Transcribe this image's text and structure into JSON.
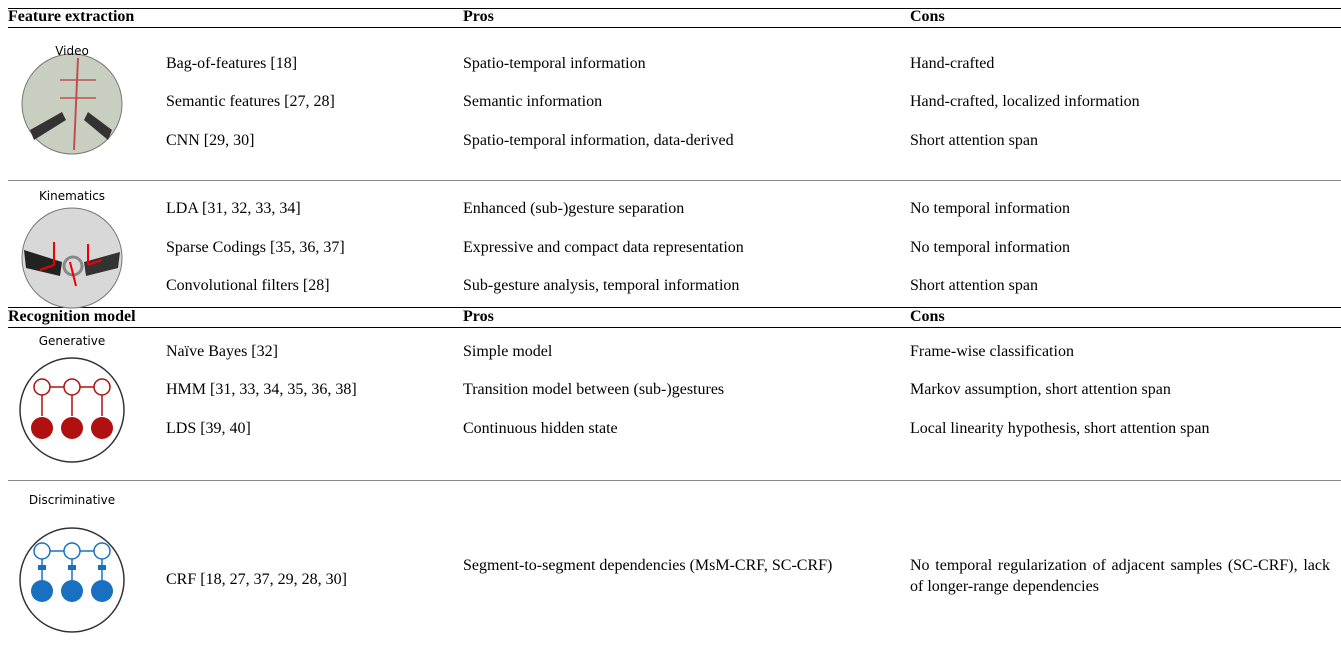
{
  "sections": [
    {
      "header": [
        "Feature extraction",
        "Pros",
        "Cons"
      ],
      "groups": [
        {
          "label": "Video",
          "rows": [
            [
              "Bag-of-features [18]",
              "Spatio-temporal information",
              "Hand-crafted"
            ],
            [
              "Semantic features [27, 28]",
              "Semantic information",
              "Hand-crafted, localized information"
            ],
            [
              "CNN [29, 30]",
              "Spatio-temporal information, data-derived",
              "Short attention span"
            ]
          ]
        },
        {
          "label": "Kinematics",
          "rows": [
            [
              "LDA [31, 32, 33, 34]",
              "Enhanced (sub-)gesture separation",
              "No temporal information"
            ],
            [
              "Sparse Codings [35, 36, 37]",
              "Expressive and compact data representation",
              "No temporal information"
            ],
            [
              "Convolutional filters [28]",
              "Sub-gesture analysis, temporal information",
              "Short attention span"
            ]
          ]
        }
      ]
    },
    {
      "header": [
        "Recognition model",
        "Pros",
        "Cons"
      ],
      "groups": [
        {
          "label": "Generative",
          "rows": [
            [
              "Naïve Bayes [32]",
              "Simple model",
              "Frame-wise classification"
            ],
            [
              "HMM [31, 33, 34, 35, 36, 38]",
              "Transition model between (sub-)gestures",
              "Markov assumption, short attention span"
            ],
            [
              "LDS [39, 40]",
              "Continuous hidden state",
              "Local linearity hypothesis, short attention span"
            ]
          ]
        },
        {
          "label": "Discriminative",
          "rows": [
            [
              "CRF [18, 27, 37, 29, 28, 30]",
              "Segment-to-segment dependencies (MsM-CRF, SC-CRF)",
              "No temporal regularization of adjacent samples (SC-CRF), lack of longer-range dependencies"
            ]
          ]
        }
      ]
    }
  ]
}
